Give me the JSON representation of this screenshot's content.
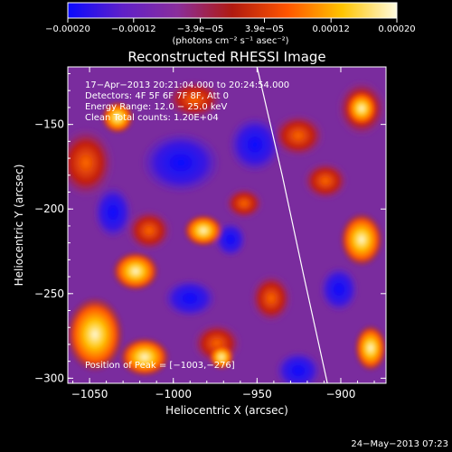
{
  "chart_data": {
    "type": "heatmap",
    "title": "Reconstructed RHESSI Image",
    "xlabel": "Heliocentric X (arcsec)",
    "ylabel": "Heliocentric Y (arcsec)",
    "xlim": [
      -1063,
      -873
    ],
    "ylim": [
      -303,
      -116
    ],
    "xticks": [
      -1050,
      -1000,
      -950,
      -900
    ],
    "yticks": [
      -300,
      -250,
      -200,
      -150
    ],
    "xtick_labels": [
      "−1050",
      "−1000",
      "−950",
      "−900"
    ],
    "ytick_labels": [
      "−300",
      "−250",
      "−200",
      "−150"
    ],
    "colorbar": {
      "range": [
        -0.0002,
        0.0002
      ],
      "ticks": [
        -0.0002,
        -0.00012,
        -3.9e-05,
        3.9e-05,
        0.00012,
        0.0002
      ],
      "tick_labels": [
        "−0.00020",
        "−0.00012",
        "−3.9e−05",
        "3.9e−05",
        "0.00012",
        "0.00020"
      ],
      "unit_text": "(photons cm⁻² s⁻¹ asec⁻²)",
      "colors": [
        "#0a0aff",
        "#6020c8",
        "#8a2e9c",
        "#b01a10",
        "#ff5500",
        "#ffc400",
        "#fffbe0"
      ]
    },
    "annotations": [
      "17−Apr−2013 20:21:04.000 to 20:24:54.000",
      "Detectors: 4F 5F 6F 7F 8F, Att 0",
      "Energy Range: 12.0 − 25.0 keV",
      "Clean    Total counts: 1.20E+04"
    ],
    "peak_label": "Position of Peak = [−1003,−276]",
    "peak": {
      "x": -1003,
      "y": -276
    },
    "limb": [
      {
        "x": -950,
        "y": -116
      },
      {
        "x": -935,
        "y": -180
      },
      {
        "x": -922,
        "y": -240
      },
      {
        "x": -908,
        "y": -303
      }
    ]
  },
  "footer": {
    "timestamp": "24−May−2013 07:23"
  }
}
